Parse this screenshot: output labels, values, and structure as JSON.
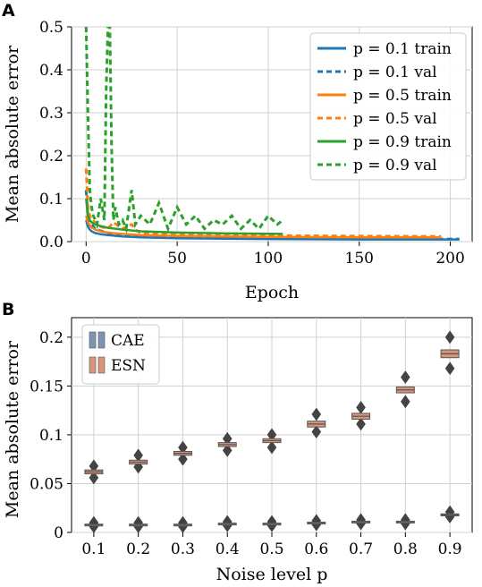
{
  "chart_data": [
    {
      "panel_label": "A",
      "type": "line",
      "xlabel": "Epoch",
      "ylabel": "Mean absolute error",
      "xlim": [
        -8,
        212
      ],
      "ylim": [
        0,
        0.5
      ],
      "xticks": [
        "0",
        "50",
        "100",
        "150",
        "200"
      ],
      "yticks": [
        "0.0",
        "0.1",
        "0.2",
        "0.3",
        "0.4",
        "0.5"
      ],
      "grid": true,
      "legend_position": "top-right",
      "series": [
        {
          "name": "p = 0.1 train",
          "color": "#1f77b4",
          "style": "solid",
          "x": [
            0,
            1,
            2,
            3,
            5,
            8,
            12,
            20,
            30,
            50,
            100,
            150,
            200,
            205
          ],
          "y": [
            0.05,
            0.035,
            0.028,
            0.024,
            0.02,
            0.017,
            0.015,
            0.012,
            0.01,
            0.008,
            0.006,
            0.005,
            0.005,
            0.005
          ]
        },
        {
          "name": "p = 0.1 val",
          "color": "#1f77b4",
          "style": "dashed",
          "x": [
            0,
            1,
            2,
            3,
            5,
            8,
            12,
            20,
            30,
            50,
            100,
            150,
            200,
            205
          ],
          "y": [
            0.12,
            0.06,
            0.045,
            0.04,
            0.03,
            0.025,
            0.02,
            0.016,
            0.012,
            0.009,
            0.007,
            0.006,
            0.006,
            0.006
          ]
        },
        {
          "name": "p = 0.5 train",
          "color": "#ff7f0e",
          "style": "solid",
          "x": [
            0,
            1,
            2,
            3,
            5,
            8,
            12,
            20,
            30,
            50,
            100,
            150,
            195
          ],
          "y": [
            0.06,
            0.045,
            0.038,
            0.033,
            0.028,
            0.024,
            0.021,
            0.018,
            0.015,
            0.013,
            0.011,
            0.01,
            0.01
          ]
        },
        {
          "name": "p = 0.5 val",
          "color": "#ff7f0e",
          "style": "dashed",
          "x": [
            0,
            1,
            2,
            3,
            5,
            8,
            12,
            15,
            20,
            25,
            28,
            30,
            40,
            50,
            100,
            150,
            195
          ],
          "y": [
            0.17,
            0.08,
            0.06,
            0.05,
            0.045,
            0.035,
            0.03,
            0.045,
            0.03,
            0.04,
            0.025,
            0.02,
            0.018,
            0.016,
            0.014,
            0.013,
            0.012
          ]
        },
        {
          "name": "p = 0.9 train",
          "color": "#2ca02c",
          "style": "solid",
          "x": [
            0,
            1,
            2,
            3,
            5,
            8,
            12,
            20,
            30,
            50,
            80,
            108
          ],
          "y": [
            0.1,
            0.06,
            0.05,
            0.045,
            0.04,
            0.036,
            0.032,
            0.028,
            0.024,
            0.021,
            0.019,
            0.018
          ]
        },
        {
          "name": "p = 0.9 val",
          "color": "#2ca02c",
          "style": "dashed",
          "x": [
            0,
            1,
            2,
            3,
            4,
            5,
            6,
            8,
            10,
            11,
            12,
            13,
            14,
            15,
            16,
            18,
            20,
            22,
            25,
            27,
            30,
            35,
            40,
            45,
            50,
            55,
            60,
            65,
            70,
            75,
            80,
            85,
            90,
            95,
            100,
            105,
            108
          ],
          "y": [
            0.5,
            0.3,
            0.12,
            0.08,
            0.06,
            0.05,
            0.04,
            0.1,
            0.05,
            0.35,
            0.5,
            0.5,
            0.22,
            0.05,
            0.08,
            0.04,
            0.05,
            0.03,
            0.12,
            0.04,
            0.06,
            0.04,
            0.09,
            0.03,
            0.08,
            0.04,
            0.06,
            0.03,
            0.05,
            0.04,
            0.06,
            0.03,
            0.05,
            0.03,
            0.06,
            0.04,
            0.05
          ]
        }
      ]
    },
    {
      "panel_label": "B",
      "type": "box",
      "xlabel": "Noise level p",
      "ylabel": "Mean absolute error",
      "categories": [
        "0.1",
        "0.2",
        "0.3",
        "0.4",
        "0.5",
        "0.6",
        "0.7",
        "0.8",
        "0.9"
      ],
      "ylim": [
        0,
        0.22
      ],
      "yticks": [
        "0",
        "0.05",
        "0.1",
        "0.15",
        "0.2"
      ],
      "grid": true,
      "legend_position": "top-left",
      "series": [
        {
          "name": "CAE",
          "color": "#7f93b5",
          "median": [
            0.008,
            0.008,
            0.008,
            0.009,
            0.009,
            0.01,
            0.011,
            0.011,
            0.018
          ],
          "q1": [
            0.0075,
            0.0075,
            0.0075,
            0.0085,
            0.0085,
            0.0095,
            0.0105,
            0.0105,
            0.017
          ],
          "q3": [
            0.0085,
            0.0085,
            0.0085,
            0.0095,
            0.0095,
            0.0105,
            0.0115,
            0.0115,
            0.019
          ],
          "outliers_low": [
            0.006,
            0.006,
            0.006,
            0.007,
            0.007,
            0.008,
            0.009,
            0.009,
            0.016
          ],
          "outliers_high": [
            0.01,
            0.01,
            0.01,
            0.011,
            0.011,
            0.012,
            0.013,
            0.013,
            0.021
          ]
        },
        {
          "name": "ESN",
          "color": "#d9957a",
          "median": [
            0.062,
            0.072,
            0.081,
            0.09,
            0.094,
            0.111,
            0.119,
            0.146,
            0.183
          ],
          "q1": [
            0.06,
            0.07,
            0.079,
            0.088,
            0.092,
            0.108,
            0.116,
            0.143,
            0.179
          ],
          "q3": [
            0.064,
            0.074,
            0.083,
            0.092,
            0.096,
            0.114,
            0.122,
            0.149,
            0.187
          ],
          "outliers_low": [
            0.056,
            0.067,
            0.075,
            0.084,
            0.087,
            0.103,
            0.111,
            0.134,
            0.168
          ],
          "outliers_high": [
            0.068,
            0.079,
            0.087,
            0.096,
            0.1,
            0.121,
            0.128,
            0.159,
            0.2
          ]
        }
      ]
    }
  ]
}
